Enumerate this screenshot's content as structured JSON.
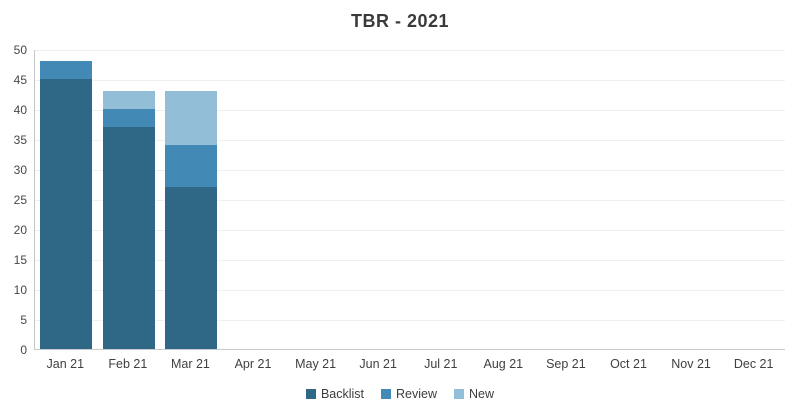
{
  "title": "TBR - 2021",
  "colors": {
    "backlist": "#2E6886",
    "review": "#4289B5",
    "new": "#92BED8",
    "title_text": "#3A3A3A",
    "axis_text": "#424242",
    "gridline": "#EFEFEF",
    "axis_line": "#C6C6C6",
    "background": "#FFFFFF"
  },
  "chart_data": {
    "type": "bar",
    "stacked": true,
    "title": "TBR - 2021",
    "categories": [
      "Jan 21",
      "Feb 21",
      "Mar 21",
      "Apr 21",
      "May 21",
      "Jun 21",
      "Jul 21",
      "Aug 21",
      "Sep 21",
      "Oct 21",
      "Nov 21",
      "Dec 21"
    ],
    "series": [
      {
        "name": "Backlist",
        "color": "#2E6886",
        "values": [
          45,
          37,
          27,
          0,
          0,
          0,
          0,
          0,
          0,
          0,
          0,
          0
        ]
      },
      {
        "name": "Review",
        "color": "#4289B5",
        "values": [
          3,
          3,
          7,
          0,
          0,
          0,
          0,
          0,
          0,
          0,
          0,
          0
        ]
      },
      {
        "name": "New",
        "color": "#92BED8",
        "values": [
          0,
          3,
          9,
          0,
          0,
          0,
          0,
          0,
          0,
          0,
          0,
          0
        ]
      }
    ],
    "stack_totals": [
      48,
      43,
      43,
      0,
      0,
      0,
      0,
      0,
      0,
      0,
      0,
      0
    ],
    "xlabel": "",
    "ylabel": "",
    "ylim": [
      0,
      50
    ],
    "yticks": [
      0,
      5,
      10,
      15,
      20,
      25,
      30,
      35,
      40,
      45,
      50
    ],
    "grid": "horizontal",
    "legend": [
      "Backlist",
      "Review",
      "New"
    ],
    "legend_position": "bottom"
  }
}
